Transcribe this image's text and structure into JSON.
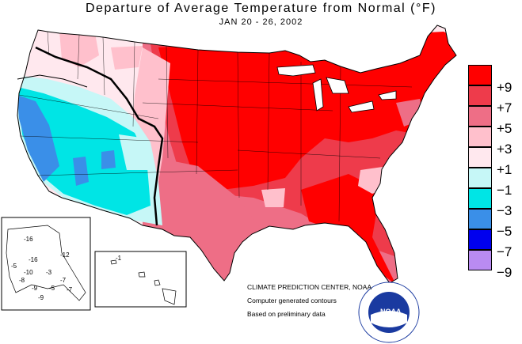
{
  "title": "Departure of Average Temperature from Normal (°F)",
  "subtitle": "JAN 20 - 26, 2002",
  "legend": {
    "items": [
      {
        "label": "+9",
        "color": "#ff0000"
      },
      {
        "label": "+7",
        "color": "#ee3b4b"
      },
      {
        "label": "+5",
        "color": "#ee6e86"
      },
      {
        "label": "+3",
        "color": "#ffc0cc"
      },
      {
        "label": "+1",
        "color": "#ffe8ee"
      },
      {
        "label": "−1",
        "color": "#c6f7f7"
      },
      {
        "label": "−3",
        "color": "#00e5e5"
      },
      {
        "label": "−5",
        "color": "#3a8fe8"
      },
      {
        "label": "−7",
        "color": "#0000ee"
      },
      {
        "label": "−9",
        "color": "#b98bf2"
      }
    ]
  },
  "credits": {
    "center": "CLIMATE PREDICTION CENTER, NOAA",
    "line1": "Computer generated contours",
    "line2": "Based on preliminary data"
  },
  "alaska_labels": [
    "-16",
    "-12",
    "-16",
    "-10",
    "-3",
    "-8",
    "-7",
    "-5",
    "-9",
    "-5",
    "-7",
    "-9"
  ],
  "hawaii_label": "-1",
  "noaa_logo": "NOAA"
}
